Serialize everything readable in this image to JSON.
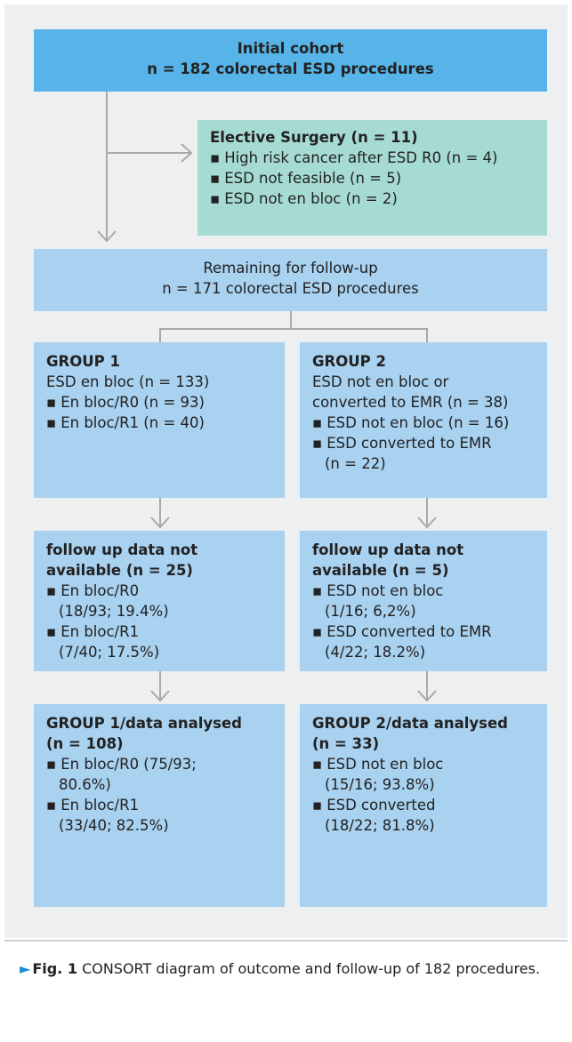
{
  "nodes": [
    {
      "title": [
        "Initial cohort",
        "n = 182 colorectal ESD procedures"
      ]
    },
    {
      "title": [
        "Elective Surgery (n = 11)"
      ],
      "items": [
        [
          "High risk cancer after ESD R0 (n = 4)"
        ],
        [
          "ESD not feasible (n = 5)"
        ],
        [
          "ESD not en bloc (n = 2)"
        ]
      ]
    },
    {
      "lines": [
        "Remaining for follow-up",
        "n = 171 colorectal ESD procedures"
      ]
    },
    {
      "title": [
        "GROUP 1"
      ],
      "lines": [
        "ESD en bloc (n = 133)"
      ],
      "items": [
        [
          "En bloc/R0 (n = 93)"
        ],
        [
          "En bloc/R1 (n = 40)"
        ]
      ]
    },
    {
      "title": [
        "GROUP 2"
      ],
      "lines": [
        "ESD not en bloc or",
        "converted  to EMR (n = 38)"
      ],
      "items": [
        [
          "ESD not en bloc  (n = 16)"
        ],
        [
          "ESD converted to EMR",
          "(n = 22)"
        ]
      ]
    },
    {
      "title": [
        "follow up data not",
        "available (n = 25)"
      ],
      "items": [
        [
          "En bloc/R0",
          "(18/93; 19.4%)"
        ],
        [
          "En bloc/R1",
          "(7/40; 17.5%)"
        ]
      ]
    },
    {
      "title": [
        "follow up data not",
        "available (n = 5)"
      ],
      "items": [
        [
          "ESD not en bloc",
          "(1/16; 6,2%)"
        ],
        [
          "ESD converted to EMR",
          "(4/22; 18.2%)"
        ]
      ]
    },
    {
      "title": [
        "GROUP 1/data analysed",
        "(n = 108)"
      ],
      "items": [
        [
          "En bloc/R0 (75/93;",
          "80.6%)"
        ],
        [
          "En bloc/R1",
          "(33/40; 82.5%)"
        ]
      ]
    },
    {
      "title": [
        "GROUP 2/data analysed",
        "(n = 33)"
      ],
      "items": [
        [
          "ESD not en bloc",
          "(15/16; 93.8%)"
        ],
        [
          "ESD converted",
          "(18/22; 81.8%)"
        ]
      ]
    }
  ],
  "caption": {
    "label": "Fig. 1",
    "text": "CONSORT diagram of outcome and follow-up of 182 procedures."
  }
}
